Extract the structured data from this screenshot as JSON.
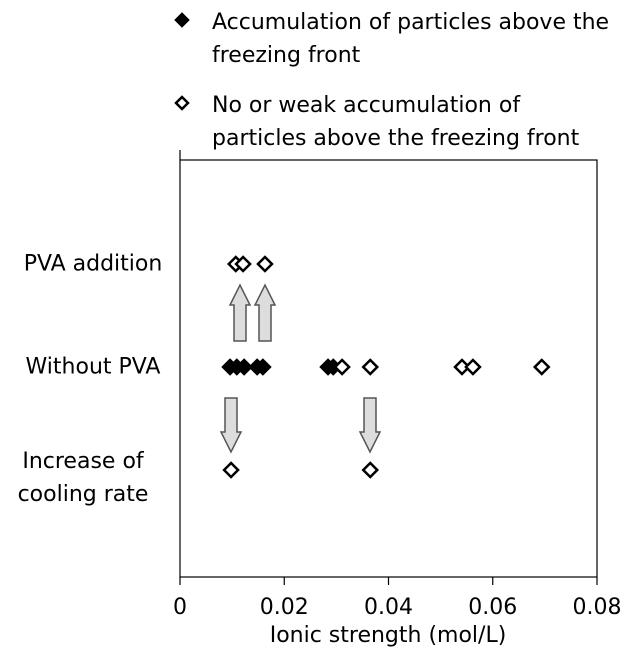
{
  "chart_data": {
    "type": "scatter",
    "xlabel": "Ionic strength (mol/L)",
    "xlim": [
      0,
      0.08
    ],
    "xticks": [
      0,
      0.02,
      0.04,
      0.06,
      0.08
    ],
    "categories": [
      "PVA addition",
      "Without PVA",
      "Increase of cooling rate"
    ],
    "series": [
      {
        "name": "Accumulation of particles above the freezing front",
        "color": "#000000",
        "marker": "filled",
        "x": [
          0.0096,
          0.0109,
          0.0123,
          0.0148,
          0.0159,
          0.0284,
          0.0294
        ],
        "y": [
          "Without PVA",
          "Without PVA",
          "Without PVA",
          "Without PVA",
          "Without PVA",
          "Without PVA",
          "Without PVA"
        ]
      },
      {
        "name": "No or weak accumulation of particles above the freezing front",
        "color": "#000000",
        "marker": "open",
        "x": [
          0.0107,
          0.0121,
          0.0163,
          0.0311,
          0.0365,
          0.0541,
          0.0562,
          0.0694,
          0.0098,
          0.0365
        ],
        "y": [
          "PVA addition",
          "PVA addition",
          "PVA addition",
          "Without PVA",
          "Without PVA",
          "Without PVA",
          "Without PVA",
          "Without PVA",
          "Increase of cooling rate",
          "Increase of cooling rate"
        ]
      }
    ]
  }
}
